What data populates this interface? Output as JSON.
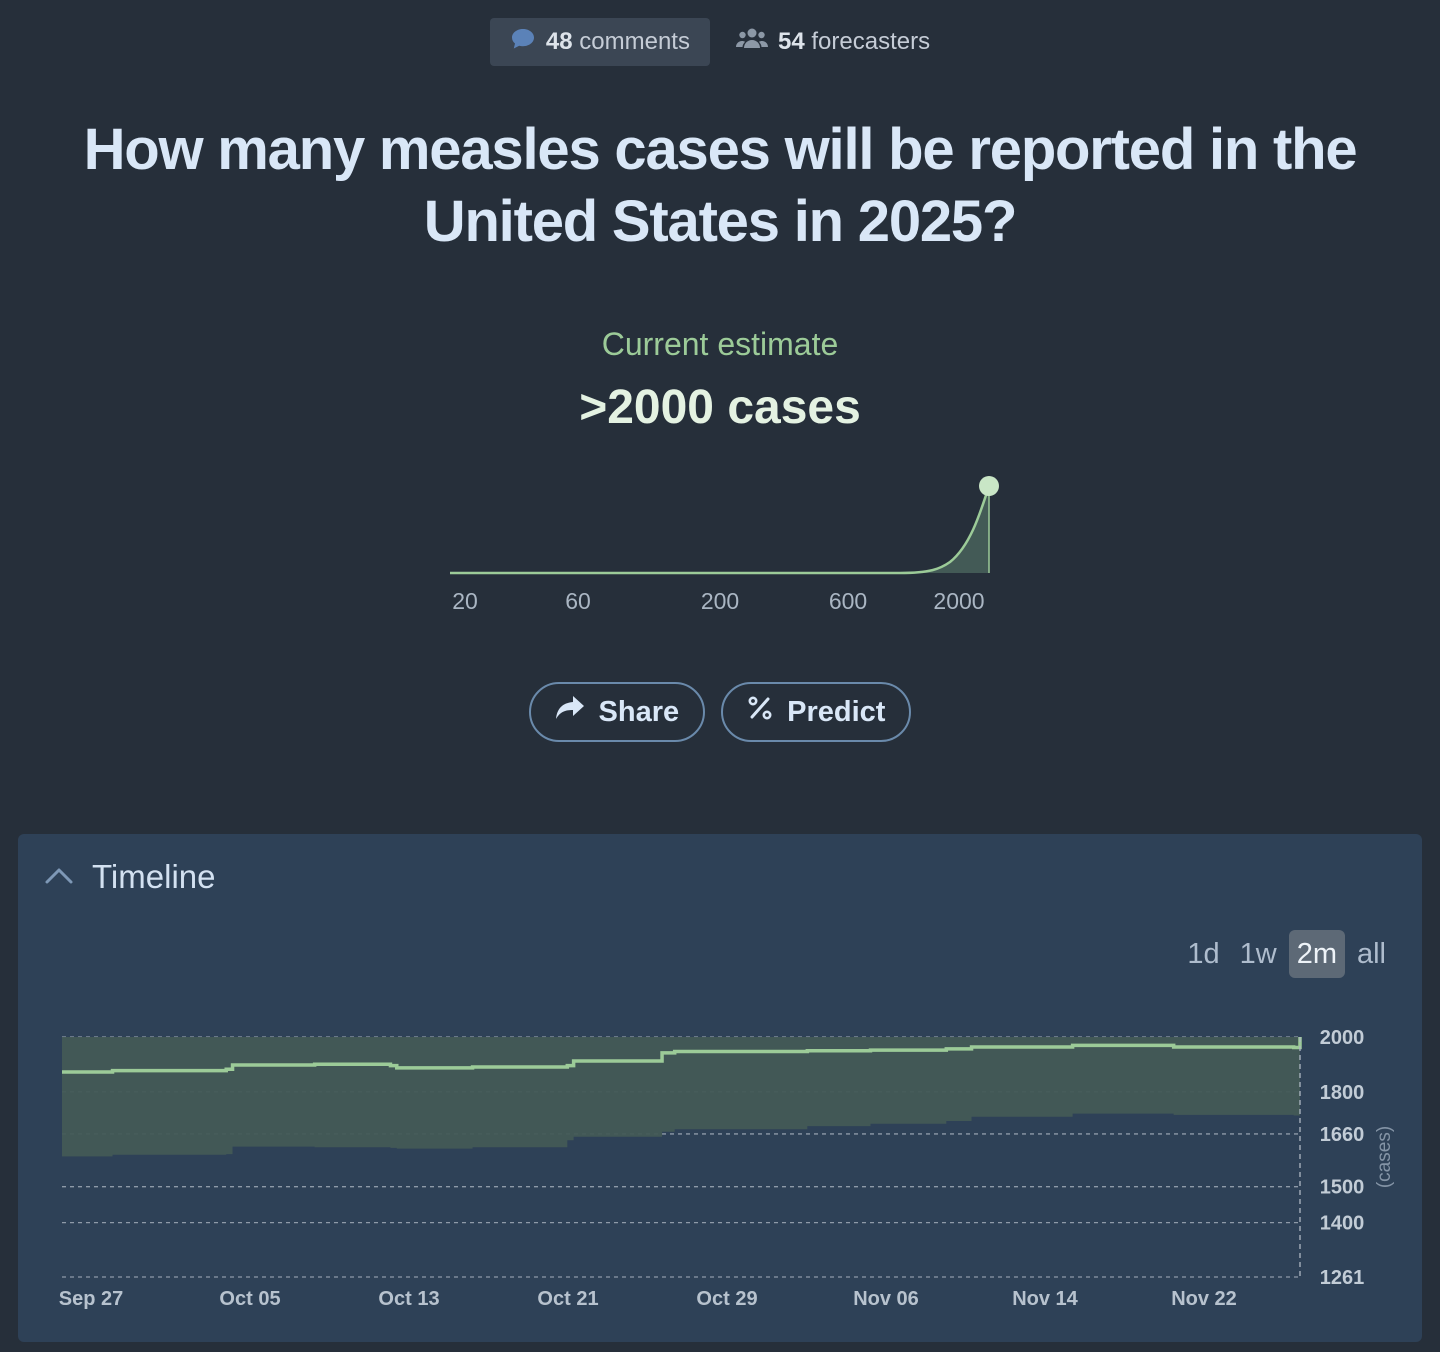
{
  "stats": {
    "comments_count": "48",
    "comments_label": "comments",
    "forecasters_count": "54",
    "forecasters_label": "forecasters"
  },
  "question": {
    "title": "How many measles cases will be reported in the United States in 2025?"
  },
  "estimate": {
    "label": "Current estimate",
    "value": ">2000 cases"
  },
  "distribution": {
    "x_ticks": [
      "20",
      "60",
      "200",
      "600",
      "2000"
    ]
  },
  "actions": {
    "share_label": "Share",
    "predict_label": "Predict"
  },
  "timeline": {
    "title": "Timeline",
    "ranges": [
      {
        "label": "1d",
        "active": false
      },
      {
        "label": "1w",
        "active": false
      },
      {
        "label": "2m",
        "active": true
      },
      {
        "label": "all",
        "active": false
      }
    ]
  },
  "colors": {
    "accent_green": "#9ccb98",
    "band_fill": "#435a56",
    "panel": "#2e4157"
  },
  "chart_data": {
    "type": "line",
    "x_ticks": [
      "Sep 27",
      "Oct 05",
      "Oct 13",
      "Oct 21",
      "Oct 29",
      "Nov 06",
      "Nov 14",
      "Nov 22"
    ],
    "y_ticks": [
      2000,
      1800,
      1660,
      1500,
      1400,
      1261
    ],
    "ylabel": "(cases)",
    "y_scale": "log",
    "ylim": [
      1261,
      2000
    ],
    "grid": true,
    "series": [
      {
        "type": "step",
        "x": [
          0,
          8,
          26,
          27,
          40,
          52,
          53,
          65,
          80,
          81,
          95,
          97,
          118,
          128,
          140,
          144,
          160,
          176,
          195,
          196
        ],
        "median": [
          1870,
          1875,
          1880,
          1895,
          1898,
          1893,
          1885,
          1888,
          1893,
          1910,
          1940,
          1945,
          1948,
          1950,
          1955,
          1962,
          1968,
          1962,
          1960,
          2000
        ],
        "lower": [
          1590,
          1595,
          1597,
          1620,
          1618,
          1616,
          1614,
          1618,
          1640,
          1651,
          1667,
          1675,
          1685,
          1693,
          1702,
          1716,
          1726,
          1722,
          1720,
          1800
        ],
        "upper": [
          2000,
          2000,
          2000,
          2000,
          2000,
          2000,
          2000,
          2000,
          2000,
          2000,
          2000,
          2000,
          2000,
          2000,
          2000,
          2000,
          2000,
          2000,
          2000,
          2000
        ]
      }
    ]
  }
}
